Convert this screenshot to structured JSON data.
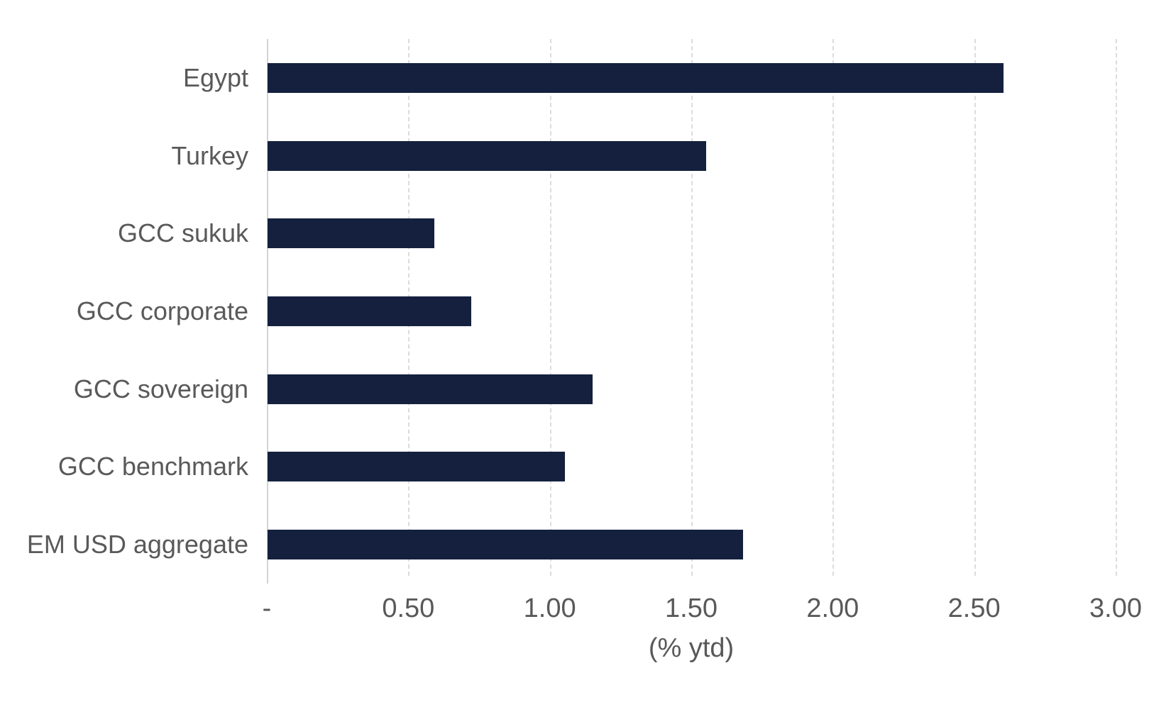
{
  "chart_data": {
    "type": "bar",
    "orientation": "horizontal",
    "title": "",
    "xlabel": "(% ytd)",
    "ylabel": "",
    "categories": [
      "Egypt",
      "Turkey",
      "GCC sukuk",
      "GCC corporate",
      "GCC sovereign",
      "GCC benchmark",
      "EM USD aggregate"
    ],
    "values": [
      2.6,
      1.55,
      0.59,
      0.72,
      1.15,
      1.05,
      1.68
    ],
    "xlim": [
      0,
      3.0
    ],
    "x_ticks": [
      0,
      0.5,
      1.0,
      1.5,
      2.0,
      2.5,
      3.0
    ],
    "x_tick_labels": [
      "-",
      "0.50",
      "1.00",
      "1.50",
      "2.00",
      "2.50",
      "3.00"
    ],
    "grid": true,
    "gridline_style": "dashed",
    "legend": false
  },
  "colors": {
    "bar": "#14203e",
    "text": "#595959",
    "gridline": "#dcdcdc",
    "axis_line": "#d4d4d4",
    "background": "#ffffff"
  }
}
